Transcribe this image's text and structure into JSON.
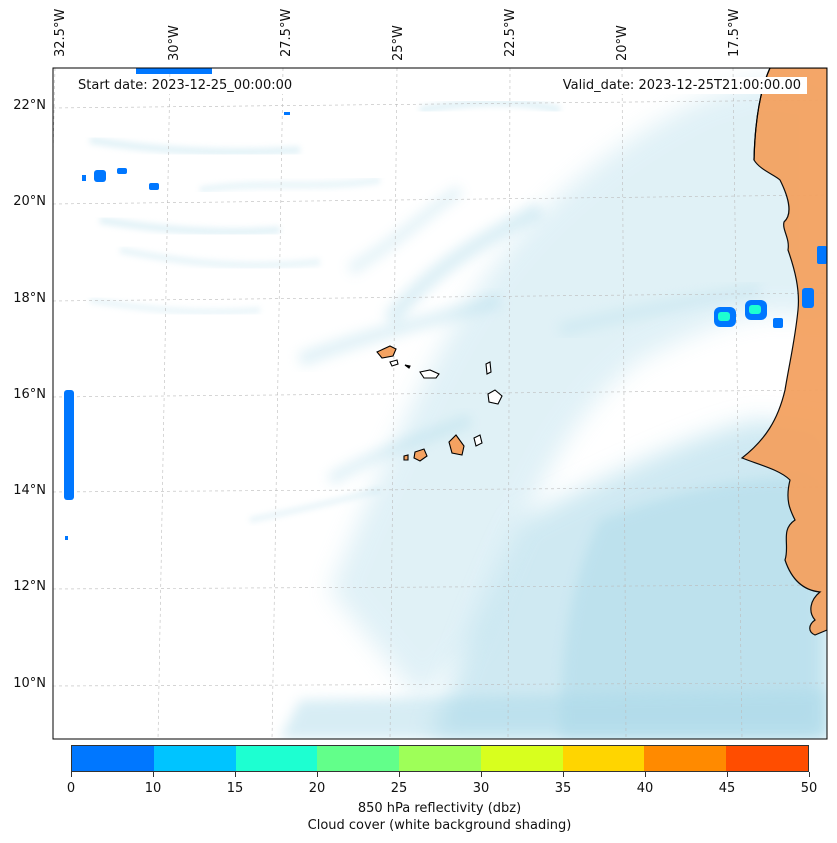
{
  "header": {
    "start_date": "Start date: 2023-12-25_00:00:00",
    "valid_date": "Valid_date: 2023-12-25T21:00:00.00"
  },
  "axes": {
    "lon_labels": [
      "32.5°W",
      "30°W",
      "27.5°W",
      "25°W",
      "22.5°W",
      "20°W",
      "17.5°W"
    ],
    "lat_labels": [
      "22°N",
      "20°N",
      "18°N",
      "16°N",
      "14°N",
      "12°N",
      "10°N"
    ],
    "lon_range": [
      -32.5,
      -15.0
    ],
    "lat_range": [
      8.9,
      22.8
    ],
    "gridlines": true
  },
  "colorbar": {
    "ticks": [
      "0",
      "10",
      "15",
      "20",
      "25",
      "30",
      "35",
      "40",
      "45",
      "50"
    ],
    "colors": [
      "#0077ff",
      "#00c4ff",
      "#1dffd1",
      "#62ff8a",
      "#9eff58",
      "#d8ff1e",
      "#ffd500",
      "#ff8a00",
      "#ff4d00"
    ],
    "label_line1": "850 hPa reflectivity (dbz)",
    "label_line2": "Cloud cover (white background shading)"
  },
  "colors": {
    "land": "#f4a261",
    "cloud": "#a8d8e8",
    "reflectivity_low": "#0077ff"
  }
}
